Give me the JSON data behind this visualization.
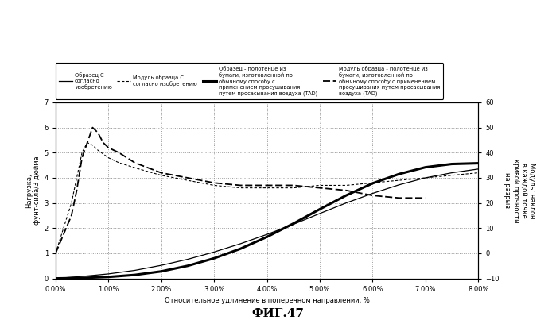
{
  "title": "ФИГ.47",
  "xlabel": "Относительное удлинение в поперечном направлении, %",
  "ylabel_left": "Нагрузка,\nфунт-сила/3 дюйма",
  "ylabel_right": "Модуль: наклон\nв каждой точке\nкривой прочности\nна разрыв",
  "xlim": [
    0.0,
    0.08
  ],
  "ylim_left": [
    0.0,
    7.0
  ],
  "ylim_right": [
    -10,
    60
  ],
  "xticks": [
    0.0,
    0.01,
    0.02,
    0.03,
    0.04,
    0.05,
    0.06,
    0.07,
    0.08
  ],
  "yticks_left": [
    0,
    1,
    2,
    3,
    4,
    5,
    6,
    7
  ],
  "yticks_right": [
    -10,
    0,
    10,
    20,
    30,
    40,
    50,
    60
  ],
  "legend_entries": [
    "Образец С\nсогласно\nизобретению",
    "Модуль образца С\nсогласно изобретению",
    "Образец - полотенце из\nбумаги, изготовленной по\nобычному способу с\nприменением просушивания\nпутем просасывания воздуха (TAD)",
    "Модуль образца - полотенце из\nбумаги, изготовленной по\nобычному способу с применением\nпросушивания путем просасывания\nвоздуха (TAD)"
  ],
  "background_color": "#ffffff",
  "curve1_x": [
    0.0,
    0.005,
    0.01,
    0.015,
    0.02,
    0.025,
    0.03,
    0.035,
    0.04,
    0.045,
    0.05,
    0.055,
    0.06,
    0.065,
    0.07,
    0.075,
    0.08
  ],
  "curve1_y": [
    0.0,
    0.08,
    0.18,
    0.32,
    0.52,
    0.76,
    1.05,
    1.38,
    1.75,
    2.15,
    2.58,
    3.0,
    3.38,
    3.72,
    4.0,
    4.2,
    4.35
  ],
  "curve3_x": [
    0.0,
    0.005,
    0.01,
    0.015,
    0.02,
    0.025,
    0.03,
    0.035,
    0.04,
    0.045,
    0.05,
    0.055,
    0.06,
    0.065,
    0.07,
    0.075,
    0.08
  ],
  "curve3_y": [
    0.0,
    0.02,
    0.06,
    0.14,
    0.28,
    0.5,
    0.8,
    1.18,
    1.65,
    2.18,
    2.75,
    3.3,
    3.78,
    4.15,
    4.42,
    4.55,
    4.58
  ],
  "curve2_x": [
    0.0,
    0.003,
    0.005,
    0.006,
    0.007,
    0.008,
    0.01,
    0.012,
    0.015,
    0.02,
    0.025,
    0.03,
    0.035,
    0.04,
    0.045,
    0.05,
    0.055,
    0.06,
    0.065,
    0.07,
    0.075,
    0.08
  ],
  "curve2_y": [
    0,
    20,
    40,
    44,
    43,
    41,
    38,
    36,
    34,
    31,
    29,
    27,
    26,
    26,
    26,
    27,
    27,
    28,
    29,
    30,
    31,
    32
  ],
  "curve4_x": [
    0.0,
    0.003,
    0.004,
    0.005,
    0.006,
    0.007,
    0.008,
    0.009,
    0.01,
    0.012,
    0.015,
    0.02,
    0.025,
    0.03,
    0.035,
    0.04,
    0.045,
    0.05,
    0.055,
    0.06,
    0.065,
    0.07
  ],
  "curve4_y": [
    0,
    15,
    25,
    38,
    44,
    50,
    48,
    44,
    42,
    40,
    36,
    32,
    30,
    28,
    27,
    27,
    27,
    26,
    25,
    23,
    22,
    22
  ]
}
